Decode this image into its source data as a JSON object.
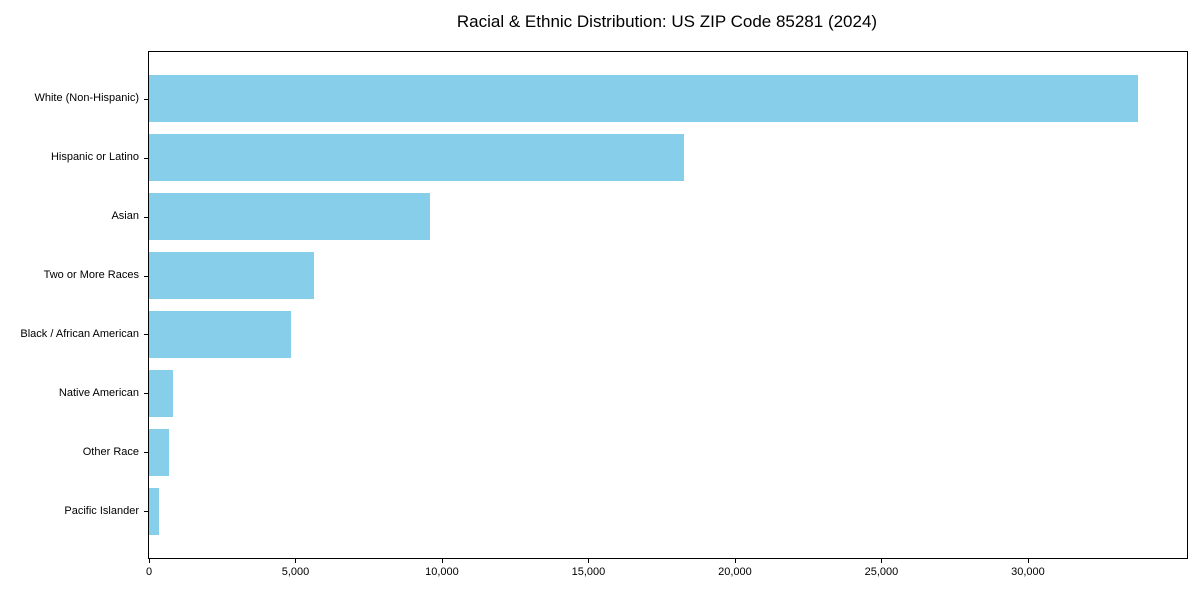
{
  "chart_data": {
    "type": "bar",
    "orientation": "horizontal",
    "title": "Racial & Ethnic Distribution: US ZIP Code 85281 (2024)",
    "categories": [
      "White (Non-Hispanic)",
      "Hispanic or Latino",
      "Asian",
      "Two or More Races",
      "Black / African American",
      "Native American",
      "Other Race",
      "Pacific Islander"
    ],
    "values": [
      33770,
      18260,
      9590,
      5630,
      4860,
      820,
      680,
      340
    ],
    "xlabel": "",
    "ylabel": "",
    "xlim": [
      0,
      35430
    ],
    "x_ticks": [
      {
        "value": 0,
        "label": "0"
      },
      {
        "value": 5000,
        "label": "5,000"
      },
      {
        "value": 10000,
        "label": "10,000"
      },
      {
        "value": 15000,
        "label": "15,000"
      },
      {
        "value": 20000,
        "label": "20,000"
      },
      {
        "value": 25000,
        "label": "25,000"
      },
      {
        "value": 30000,
        "label": "30,000"
      }
    ],
    "bar_color": "#87CEEB",
    "background_color": "#ffffff",
    "spine_color": "#000000",
    "grid": false,
    "legend": null
  }
}
